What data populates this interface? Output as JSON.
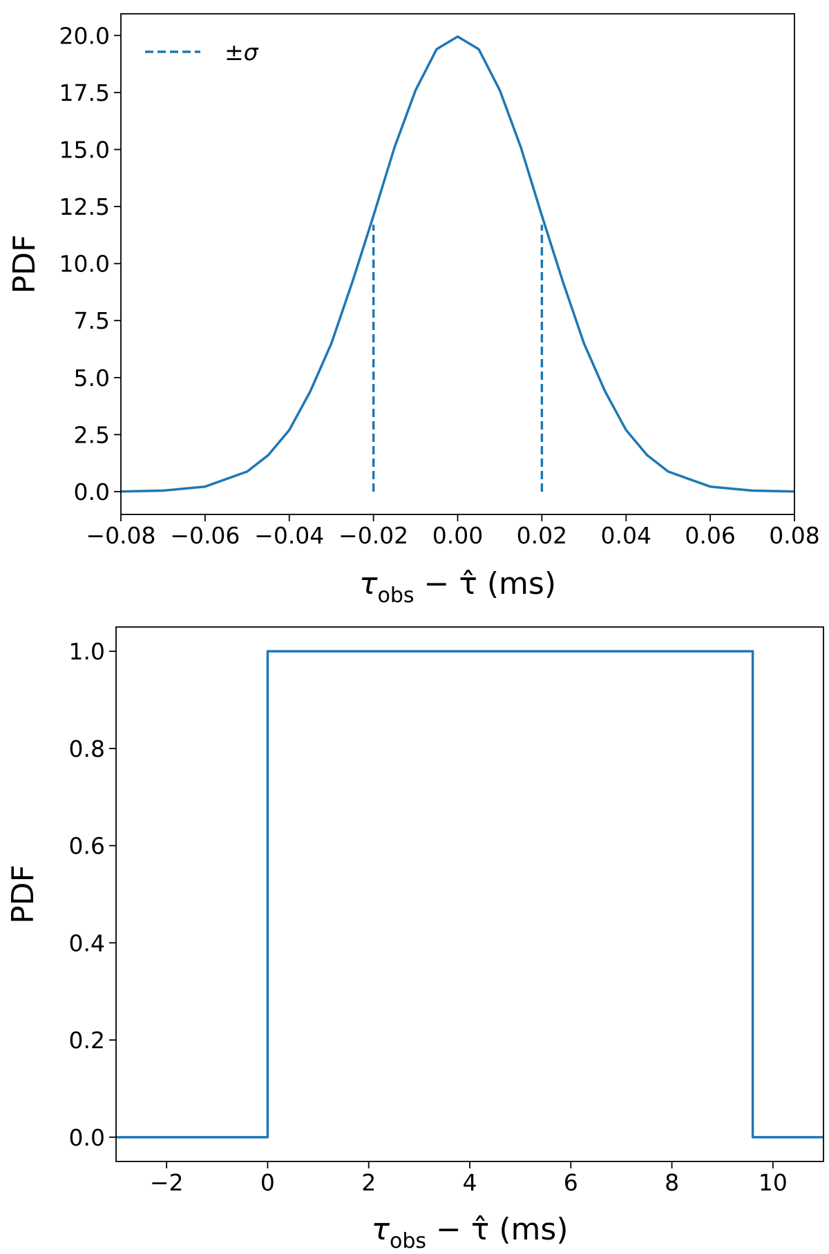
{
  "chart_data": [
    {
      "type": "line",
      "title": "",
      "xlabel": {
        "main": "τ",
        "sub": "obs",
        "rest": " − τ̂ (ms)"
      },
      "ylabel": "PDF",
      "xlim": [
        -0.08,
        0.08
      ],
      "ylim": [
        -1.0,
        20.95
      ],
      "xticks": [
        -0.08,
        -0.06,
        -0.04,
        -0.02,
        0.0,
        0.02,
        0.04,
        0.06,
        0.08
      ],
      "xtick_labels": [
        "−0.08",
        "−0.06",
        "−0.04",
        "−0.02",
        "0.00",
        "0.02",
        "0.04",
        "0.06",
        "0.08"
      ],
      "yticks": [
        0.0,
        2.5,
        5.0,
        7.5,
        10.0,
        12.5,
        15.0,
        17.5,
        20.0
      ],
      "ytick_labels": [
        "0.0",
        "2.5",
        "5.0",
        "7.5",
        "10.0",
        "12.5",
        "15.0",
        "17.5",
        "20.0"
      ],
      "grid": false,
      "series": [
        {
          "style": "solid",
          "color": "#1f77b4",
          "x": [
            -0.08,
            -0.07,
            -0.06,
            -0.05,
            -0.045,
            -0.04,
            -0.035,
            -0.03,
            -0.025,
            -0.02,
            -0.015,
            -0.01,
            -0.005,
            0.0,
            0.005,
            0.01,
            0.015,
            0.02,
            0.025,
            0.03,
            0.035,
            0.04,
            0.045,
            0.05,
            0.06,
            0.07,
            0.08
          ],
          "y": [
            0.0067,
            0.044,
            0.22,
            0.88,
            1.6,
            2.7,
            4.4,
            6.5,
            9.2,
            12.1,
            15.1,
            17.6,
            19.4,
            19.95,
            19.4,
            17.6,
            15.1,
            12.1,
            9.2,
            6.5,
            4.4,
            2.7,
            1.6,
            0.88,
            0.22,
            0.044,
            0.0067
          ]
        },
        {
          "name": "±σ",
          "style": "dashed",
          "color": "#1f77b4",
          "segments": [
            {
              "x": [
                -0.02,
                -0.02
              ],
              "y": [
                0.0,
                11.7
              ]
            },
            {
              "x": [
                0.02,
                0.02
              ],
              "y": [
                0.0,
                11.7
              ]
            }
          ]
        }
      ],
      "legend": {
        "position": "upper-left",
        "entries": [
          "±σ"
        ]
      }
    },
    {
      "type": "line",
      "title": "",
      "xlabel": {
        "main": "τ",
        "sub": "obs",
        "rest": " − τ̂ (ms)"
      },
      "ylabel": "PDF",
      "xlim": [
        -3.0,
        11.0
      ],
      "ylim": [
        -0.05,
        1.05
      ],
      "xticks": [
        -2,
        0,
        2,
        4,
        6,
        8,
        10
      ],
      "xtick_labels": [
        "−2",
        "0",
        "2",
        "4",
        "6",
        "8",
        "10"
      ],
      "yticks": [
        0.0,
        0.2,
        0.4,
        0.6,
        0.8,
        1.0
      ],
      "ytick_labels": [
        "0.0",
        "0.2",
        "0.4",
        "0.6",
        "0.8",
        "1.0"
      ],
      "grid": false,
      "series": [
        {
          "style": "solid",
          "color": "#1f77b4",
          "x": [
            -3.0,
            0.0,
            0.0,
            9.6,
            9.6,
            11.0
          ],
          "y": [
            0.0,
            0.0,
            1.0,
            1.0,
            0.0,
            0.0
          ]
        }
      ]
    }
  ]
}
